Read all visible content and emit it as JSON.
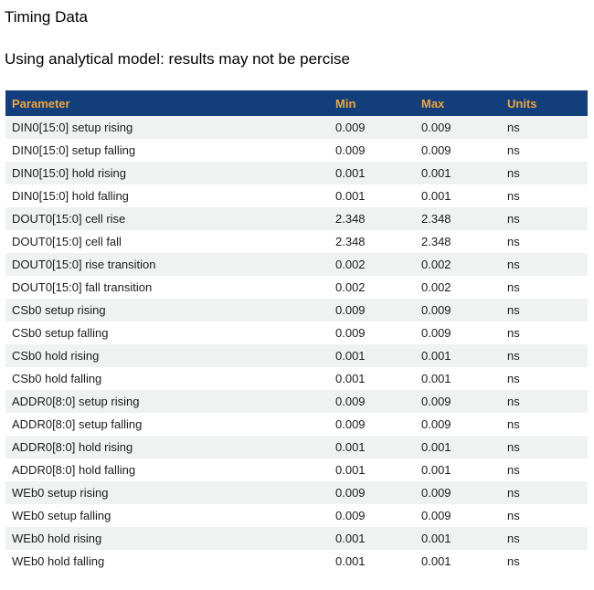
{
  "page": {
    "title": "Timing Data",
    "subtitle": "Using analytical model: results may not be percise"
  },
  "table": {
    "columns": [
      "Parameter",
      "Min",
      "Max",
      "Units"
    ],
    "rows": [
      {
        "parameter": "DIN0[15:0] setup rising",
        "min": "0.009",
        "max": "0.009",
        "units": "ns"
      },
      {
        "parameter": "DIN0[15:0] setup falling",
        "min": "0.009",
        "max": "0.009",
        "units": "ns"
      },
      {
        "parameter": "DIN0[15:0] hold rising",
        "min": "0.001",
        "max": "0.001",
        "units": "ns"
      },
      {
        "parameter": "DIN0[15:0] hold falling",
        "min": "0.001",
        "max": "0.001",
        "units": "ns"
      },
      {
        "parameter": "DOUT0[15:0] cell rise",
        "min": "2.348",
        "max": "2.348",
        "units": "ns"
      },
      {
        "parameter": "DOUT0[15:0] cell fall",
        "min": "2.348",
        "max": "2.348",
        "units": "ns"
      },
      {
        "parameter": "DOUT0[15:0] rise transition",
        "min": "0.002",
        "max": "0.002",
        "units": "ns"
      },
      {
        "parameter": "DOUT0[15:0] fall transition",
        "min": "0.002",
        "max": "0.002",
        "units": "ns"
      },
      {
        "parameter": "CSb0 setup rising",
        "min": "0.009",
        "max": "0.009",
        "units": "ns"
      },
      {
        "parameter": "CSb0 setup falling",
        "min": "0.009",
        "max": "0.009",
        "units": "ns"
      },
      {
        "parameter": "CSb0 hold rising",
        "min": "0.001",
        "max": "0.001",
        "units": "ns"
      },
      {
        "parameter": "CSb0 hold falling",
        "min": "0.001",
        "max": "0.001",
        "units": "ns"
      },
      {
        "parameter": "ADDR0[8:0] setup rising",
        "min": "0.009",
        "max": "0.009",
        "units": "ns"
      },
      {
        "parameter": "ADDR0[8:0] setup falling",
        "min": "0.009",
        "max": "0.009",
        "units": "ns"
      },
      {
        "parameter": "ADDR0[8:0] hold rising",
        "min": "0.001",
        "max": "0.001",
        "units": "ns"
      },
      {
        "parameter": "ADDR0[8:0] hold falling",
        "min": "0.001",
        "max": "0.001",
        "units": "ns"
      },
      {
        "parameter": "WEb0 setup rising",
        "min": "0.009",
        "max": "0.009",
        "units": "ns"
      },
      {
        "parameter": "WEb0 setup falling",
        "min": "0.009",
        "max": "0.009",
        "units": "ns"
      },
      {
        "parameter": "WEb0 hold rising",
        "min": "0.001",
        "max": "0.001",
        "units": "ns"
      },
      {
        "parameter": "WEb0 hold falling",
        "min": "0.001",
        "max": "0.001",
        "units": "ns"
      }
    ]
  },
  "colors": {
    "header_bg": "#123f7c",
    "header_text": "#efa53b",
    "row_alt_bg": "#f0f2f1",
    "row_text": "#1b1b1b",
    "title_text": "#000000"
  }
}
